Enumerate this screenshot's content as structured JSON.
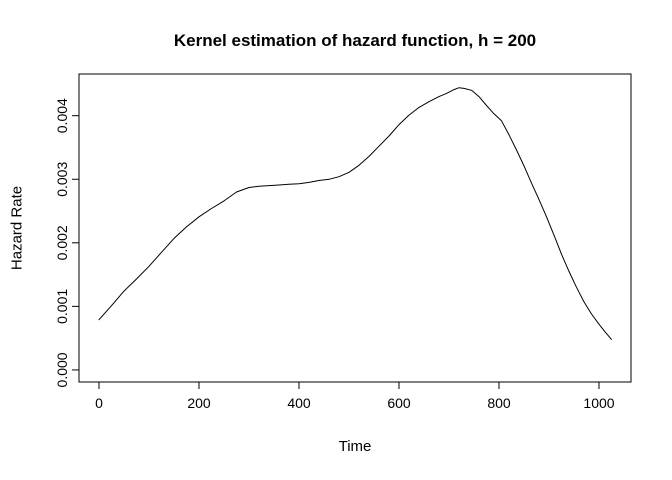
{
  "window": {
    "background": "#ffffff",
    "foreground": "#000000"
  },
  "chart_data": {
    "type": "line",
    "title": "Kernel estimation of hazard function, h = 200",
    "xlabel": "Time",
    "ylabel": "Hazard Rate",
    "grid": false,
    "legend": "none",
    "line_color": "#000000",
    "x_ticks": [
      "0",
      "200",
      "400",
      "600",
      "800",
      "1000"
    ],
    "x_tick_values": [
      0,
      200,
      400,
      600,
      800,
      1000
    ],
    "y_ticks": [
      "0.000",
      "0.001",
      "0.002",
      "0.003",
      "0.004"
    ],
    "y_tick_values": [
      0,
      0.001,
      0.002,
      0.003,
      0.004
    ],
    "xlim": [
      -40,
      1064
    ],
    "ylim": [
      -0.00019,
      0.004656
    ],
    "series": [
      {
        "name": "kernel-hazard-estimate",
        "points": [
          [
            0,
            0.00079
          ],
          [
            25,
            0.00101
          ],
          [
            50,
            0.00124
          ],
          [
            75,
            0.00143
          ],
          [
            100,
            0.00163
          ],
          [
            125,
            0.00185
          ],
          [
            150,
            0.00207
          ],
          [
            175,
            0.00225
          ],
          [
            200,
            0.00241
          ],
          [
            225,
            0.00254
          ],
          [
            250,
            0.00266
          ],
          [
            275,
            0.0028
          ],
          [
            300,
            0.00287
          ],
          [
            320,
            0.00289
          ],
          [
            340,
            0.0029
          ],
          [
            360,
            0.00291
          ],
          [
            380,
            0.00292
          ],
          [
            400,
            0.00293
          ],
          [
            420,
            0.00295
          ],
          [
            440,
            0.00298
          ],
          [
            460,
            0.003
          ],
          [
            480,
            0.00304
          ],
          [
            500,
            0.00311
          ],
          [
            520,
            0.00322
          ],
          [
            540,
            0.00336
          ],
          [
            560,
            0.00352
          ],
          [
            580,
            0.00368
          ],
          [
            600,
            0.00386
          ],
          [
            620,
            0.00401
          ],
          [
            640,
            0.00413
          ],
          [
            660,
            0.00422
          ],
          [
            680,
            0.0043
          ],
          [
            695,
            0.00435
          ],
          [
            710,
            0.00441
          ],
          [
            720,
            0.00444
          ],
          [
            730,
            0.00443
          ],
          [
            745,
            0.0044
          ],
          [
            760,
            0.0043
          ],
          [
            775,
            0.00416
          ],
          [
            790,
            0.00403
          ],
          [
            805,
            0.00392
          ],
          [
            820,
            0.0037
          ],
          [
            835,
            0.00346
          ],
          [
            850,
            0.00321
          ],
          [
            865,
            0.00294
          ],
          [
            880,
            0.00268
          ],
          [
            895,
            0.00241
          ],
          [
            910,
            0.00212
          ],
          [
            925,
            0.00182
          ],
          [
            940,
            0.00155
          ],
          [
            955,
            0.0013
          ],
          [
            970,
            0.00107
          ],
          [
            985,
            0.00088
          ],
          [
            1000,
            0.00072
          ],
          [
            1012,
            0.0006
          ],
          [
            1025,
            0.00048
          ]
        ]
      }
    ]
  }
}
